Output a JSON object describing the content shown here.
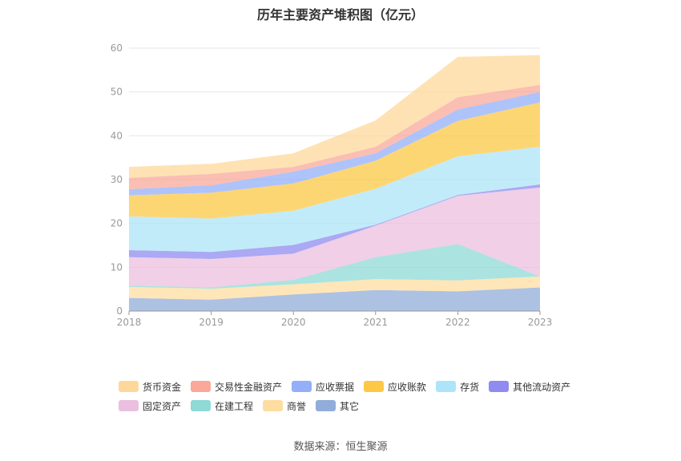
{
  "title": "历年主要资产堆积图（亿元）",
  "source": "数据来源：恒生聚源",
  "chart_data": {
    "type": "area",
    "stacked": true,
    "x": [
      "2018",
      "2019",
      "2020",
      "2021",
      "2022",
      "2023"
    ],
    "ylim": [
      0,
      60
    ],
    "yticks": [
      0,
      10,
      20,
      30,
      40,
      50,
      60
    ],
    "grid": true,
    "legend_position": "bottom",
    "series": [
      {
        "name": "其它",
        "color": "#91acd9",
        "values": [
          3.0,
          2.6,
          3.8,
          4.8,
          4.5,
          5.4
        ]
      },
      {
        "name": "商誉",
        "color": "#fddda0",
        "values": [
          2.5,
          2.5,
          2.3,
          2.5,
          2.5,
          2.5
        ]
      },
      {
        "name": "在建工程",
        "color": "#8fd9d6",
        "values": [
          0.3,
          0.3,
          1.0,
          5.0,
          8.3,
          0.0
        ]
      },
      {
        "name": "固定资产",
        "color": "#ebbfdf",
        "values": [
          6.5,
          6.5,
          6.0,
          7.2,
          11.0,
          20.3
        ]
      },
      {
        "name": "其他流动资产",
        "color": "#8f8bf0",
        "values": [
          1.6,
          1.6,
          2.0,
          0.2,
          0.2,
          0.7
        ]
      },
      {
        "name": "存货",
        "color": "#aee4f8",
        "values": [
          7.7,
          7.6,
          7.8,
          8.2,
          8.8,
          8.6
        ]
      },
      {
        "name": "应收账款",
        "color": "#fcc846",
        "values": [
          4.8,
          5.9,
          6.2,
          6.4,
          8.1,
          10.1
        ]
      },
      {
        "name": "应收票据",
        "color": "#93aff8",
        "values": [
          1.4,
          1.7,
          2.7,
          1.7,
          2.6,
          2.4
        ]
      },
      {
        "name": "交易性金融资产",
        "color": "#f9a89a",
        "values": [
          2.6,
          2.6,
          1.1,
          1.5,
          2.8,
          1.6
        ]
      },
      {
        "name": "货币资金",
        "color": "#fdd89a",
        "values": [
          2.5,
          2.3,
          3.1,
          6.0,
          9.2,
          6.8
        ]
      }
    ],
    "legend_order": [
      "货币资金",
      "交易性金融资产",
      "应收票据",
      "应收账款",
      "存货",
      "其他流动资产",
      "固定资产",
      "在建工程",
      "商誉",
      "其它"
    ]
  }
}
